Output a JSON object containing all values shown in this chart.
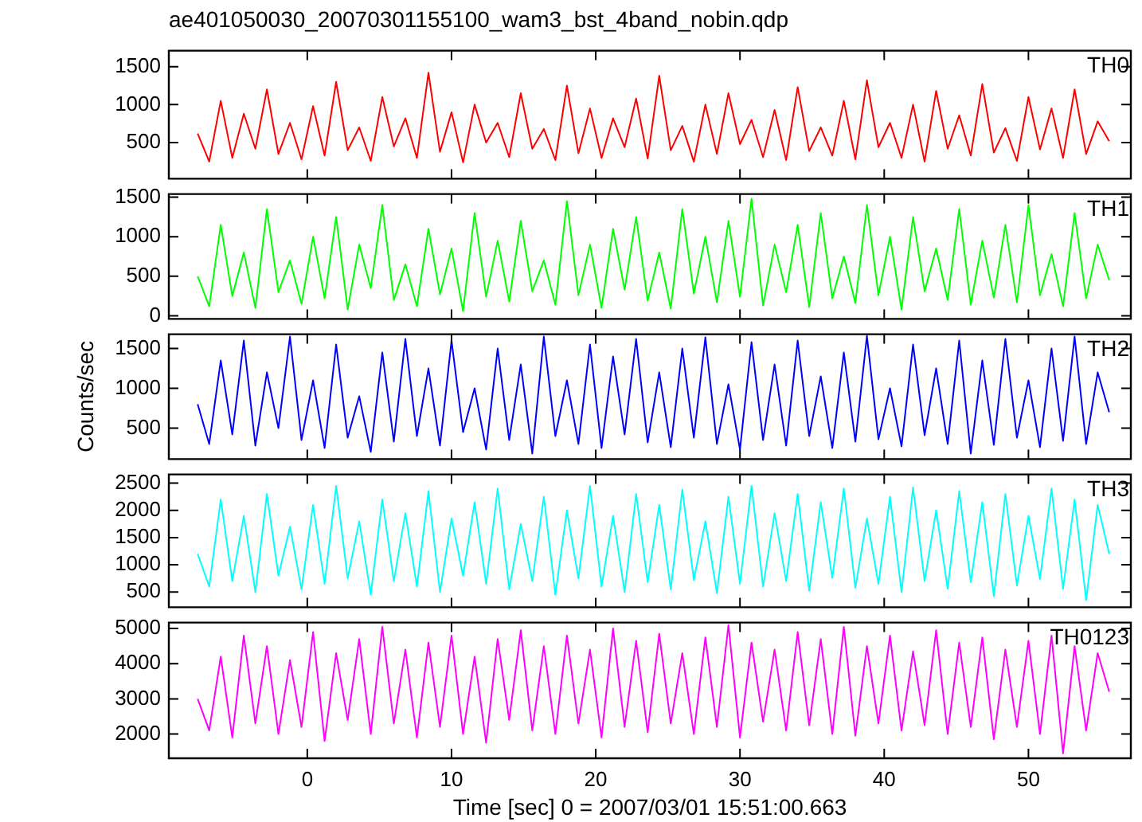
{
  "chart_data": [
    {
      "type": "line",
      "title": "ae401050030_20070301155100_wam3_bst_4band_nobin.qdp",
      "tick_labels": "y",
      "xlim": [
        -9.6,
        57.1
      ],
      "xticks": [
        0,
        10,
        20,
        30,
        40,
        50
      ],
      "ylim": [
        25,
        1710
      ],
      "yticks": [
        500,
        1000,
        1500
      ],
      "x": [
        -7.6,
        -6.8,
        -6,
        -5.2,
        -4.4,
        -3.6,
        -2.8,
        -2,
        -1.2,
        -0.4,
        0.4,
        1.2,
        2,
        2.8,
        3.6,
        4.4,
        5.2,
        6,
        6.8,
        7.6,
        8.4,
        9.2,
        10,
        10.8,
        11.6,
        12.4,
        13.2,
        14,
        14.8,
        15.6,
        16.4,
        17.2,
        18,
        18.8,
        19.6,
        20.4,
        21.2,
        22,
        22.8,
        23.6,
        24.4,
        25.2,
        26,
        26.8,
        27.6,
        28.4,
        29.2,
        30,
        30.8,
        31.6,
        32.4,
        33.2,
        34,
        34.8,
        35.6,
        36.4,
        37.2,
        38,
        38.8,
        39.6,
        40.4,
        41.2,
        42,
        42.8,
        43.6,
        44.4,
        45.2,
        46,
        46.8,
        47.6,
        48.4,
        49.2,
        50,
        50.8,
        51.6,
        52.4,
        53.2,
        54,
        54.8,
        55.6
      ],
      "series": [
        {
          "name": "TH0",
          "color": "#ff0000",
          "values": [
            620,
            250,
            1050,
            300,
            880,
            420,
            1200,
            350,
            760,
            280,
            980,
            330,
            1300,
            400,
            700,
            260,
            1100,
            450,
            820,
            300,
            1420,
            380,
            900,
            240,
            1000,
            500,
            760,
            310,
            1150,
            420,
            680,
            270,
            1250,
            360,
            950,
            300,
            820,
            440,
            1080,
            290,
            1380,
            400,
            720,
            250,
            1000,
            350,
            1150,
            480,
            800,
            310,
            930,
            270,
            1230,
            390,
            700,
            330,
            1050,
            280,
            1320,
            440,
            760,
            300,
            1000,
            250,
            1180,
            420,
            860,
            330,
            1270,
            370,
            690,
            260,
            1100,
            410,
            950,
            300,
            1200,
            350,
            780,
            520
          ]
        }
      ]
    },
    {
      "type": "line",
      "tick_labels": "y",
      "xlim": [
        -9.6,
        57.1
      ],
      "xticks": [
        0,
        10,
        20,
        30,
        40,
        50
      ],
      "ylim": [
        -40,
        1540
      ],
      "yticks": [
        0,
        500,
        1000,
        1500
      ],
      "x": [
        -7.6,
        -6.8,
        -6,
        -5.2,
        -4.4,
        -3.6,
        -2.8,
        -2,
        -1.2,
        -0.4,
        0.4,
        1.2,
        2,
        2.8,
        3.6,
        4.4,
        5.2,
        6,
        6.8,
        7.6,
        8.4,
        9.2,
        10,
        10.8,
        11.6,
        12.4,
        13.2,
        14,
        14.8,
        15.6,
        16.4,
        17.2,
        18,
        18.8,
        19.6,
        20.4,
        21.2,
        22,
        22.8,
        23.6,
        24.4,
        25.2,
        26,
        26.8,
        27.6,
        28.4,
        29.2,
        30,
        30.8,
        31.6,
        32.4,
        33.2,
        34,
        34.8,
        35.6,
        36.4,
        37.2,
        38,
        38.8,
        39.6,
        40.4,
        41.2,
        42,
        42.8,
        43.6,
        44.4,
        45.2,
        46,
        46.8,
        47.6,
        48.4,
        49.2,
        50,
        50.8,
        51.6,
        52.4,
        53.2,
        54,
        54.8,
        55.6
      ],
      "series": [
        {
          "name": "TH1",
          "color": "#00ff00",
          "values": [
            500,
            120,
            1150,
            250,
            800,
            100,
            1350,
            300,
            700,
            150,
            1000,
            220,
            1250,
            80,
            900,
            350,
            1400,
            200,
            650,
            120,
            1100,
            270,
            850,
            60,
            1300,
            240,
            950,
            180,
            1200,
            310,
            700,
            140,
            1450,
            260,
            900,
            100,
            1100,
            330,
            1250,
            190,
            800,
            90,
            1350,
            280,
            1000,
            170,
            1200,
            240,
            1480,
            130,
            900,
            300,
            1150,
            110,
            1300,
            220,
            750,
            160,
            1400,
            260,
            1000,
            80,
            1250,
            310,
            850,
            200,
            1350,
            140,
            950,
            230,
            1150,
            170,
            1400,
            260,
            780,
            120,
            1300,
            220,
            900,
            450
          ]
        }
      ]
    },
    {
      "type": "line",
      "ylabel": "Counts/sec",
      "tick_labels": "y",
      "xlim": [
        -9.6,
        57.1
      ],
      "xticks": [
        0,
        10,
        20,
        30,
        40,
        50
      ],
      "ylim": [
        110,
        1680
      ],
      "yticks": [
        500,
        1000,
        1500
      ],
      "x": [
        -7.6,
        -6.8,
        -6,
        -5.2,
        -4.4,
        -3.6,
        -2.8,
        -2,
        -1.2,
        -0.4,
        0.4,
        1.2,
        2,
        2.8,
        3.6,
        4.4,
        5.2,
        6,
        6.8,
        7.6,
        8.4,
        9.2,
        10,
        10.8,
        11.6,
        12.4,
        13.2,
        14,
        14.8,
        15.6,
        16.4,
        17.2,
        18,
        18.8,
        19.6,
        20.4,
        21.2,
        22,
        22.8,
        23.6,
        24.4,
        25.2,
        26,
        26.8,
        27.6,
        28.4,
        29.2,
        30,
        30.8,
        31.6,
        32.4,
        33.2,
        34,
        34.8,
        35.6,
        36.4,
        37.2,
        38,
        38.8,
        39.6,
        40.4,
        41.2,
        42,
        42.8,
        43.6,
        44.4,
        45.2,
        46,
        46.8,
        47.6,
        48.4,
        49.2,
        50,
        50.8,
        51.6,
        52.4,
        53.2,
        54,
        54.8,
        55.6
      ],
      "series": [
        {
          "name": "TH2",
          "color": "#0000ff",
          "values": [
            800,
            300,
            1350,
            420,
            1600,
            280,
            1200,
            500,
            1650,
            350,
            1100,
            250,
            1550,
            380,
            900,
            200,
            1450,
            330,
            1620,
            400,
            1250,
            280,
            1600,
            450,
            1000,
            230,
            1500,
            350,
            1300,
            180,
            1650,
            400,
            1100,
            300,
            1550,
            250,
            1400,
            420,
            1620,
            320,
            1200,
            260,
            1500,
            380,
            1640,
            300,
            1050,
            230,
            1580,
            350,
            1300,
            280,
            1600,
            400,
            1150,
            250,
            1450,
            330,
            1660,
            360,
            1000,
            270,
            1550,
            410,
            1250,
            300,
            1600,
            180,
            1350,
            290,
            1620,
            380,
            1100,
            260,
            1500,
            340,
            1650,
            300,
            1200,
            700
          ]
        }
      ]
    },
    {
      "type": "line",
      "tick_labels": "y",
      "xlim": [
        -9.6,
        57.1
      ],
      "xticks": [
        0,
        10,
        20,
        30,
        40,
        50
      ],
      "ylim": [
        220,
        2660
      ],
      "yticks": [
        500,
        1000,
        1500,
        2000,
        2500
      ],
      "x": [
        -7.6,
        -6.8,
        -6,
        -5.2,
        -4.4,
        -3.6,
        -2.8,
        -2,
        -1.2,
        -0.4,
        0.4,
        1.2,
        2,
        2.8,
        3.6,
        4.4,
        5.2,
        6,
        6.8,
        7.6,
        8.4,
        9.2,
        10,
        10.8,
        11.6,
        12.4,
        13.2,
        14,
        14.8,
        15.6,
        16.4,
        17.2,
        18,
        18.8,
        19.6,
        20.4,
        21.2,
        22,
        22.8,
        23.6,
        24.4,
        25.2,
        26,
        26.8,
        27.6,
        28.4,
        29.2,
        30,
        30.8,
        31.6,
        32.4,
        33.2,
        34,
        34.8,
        35.6,
        36.4,
        37.2,
        38,
        38.8,
        39.6,
        40.4,
        41.2,
        42,
        42.8,
        43.6,
        44.4,
        45.2,
        46,
        46.8,
        47.6,
        48.4,
        49.2,
        50,
        50.8,
        51.6,
        52.4,
        53.2,
        54,
        54.8,
        55.6
      ],
      "series": [
        {
          "name": "TH3",
          "color": "#00ffff",
          "values": [
            1200,
            600,
            2200,
            700,
            1900,
            500,
            2300,
            800,
            1700,
            550,
            2100,
            650,
            2450,
            750,
            1800,
            450,
            2200,
            700,
            1950,
            600,
            2350,
            500,
            1850,
            800,
            2150,
            650,
            2400,
            550,
            1750,
            700,
            2250,
            450,
            2000,
            750,
            2450,
            600,
            1900,
            500,
            2300,
            680,
            2100,
            550,
            2380,
            720,
            1800,
            480,
            2250,
            650,
            2450,
            600,
            1950,
            700,
            2300,
            520,
            2150,
            760,
            2400,
            580,
            1850,
            650,
            2250,
            500,
            2420,
            700,
            2000,
            560,
            2350,
            680,
            2150,
            420,
            2300,
            620,
            1900,
            740,
            2400,
            560,
            2200,
            350,
            2100,
            1200
          ]
        }
      ]
    },
    {
      "type": "line",
      "xlabel": "Time [sec] 0 = 2007/03/01 15:51:00.663",
      "xlim": [
        -9.6,
        57.1
      ],
      "xticks": [
        0,
        10,
        20,
        30,
        40,
        50
      ],
      "ylim": [
        1310,
        5170
      ],
      "yticks": [
        2000,
        3000,
        4000,
        5000
      ],
      "x": [
        -7.6,
        -6.8,
        -6,
        -5.2,
        -4.4,
        -3.6,
        -2.8,
        -2,
        -1.2,
        -0.4,
        0.4,
        1.2,
        2,
        2.8,
        3.6,
        4.4,
        5.2,
        6,
        6.8,
        7.6,
        8.4,
        9.2,
        10,
        10.8,
        11.6,
        12.4,
        13.2,
        14,
        14.8,
        15.6,
        16.4,
        17.2,
        18,
        18.8,
        19.6,
        20.4,
        21.2,
        22,
        22.8,
        23.6,
        24.4,
        25.2,
        26,
        26.8,
        27.6,
        28.4,
        29.2,
        30,
        30.8,
        31.6,
        32.4,
        33.2,
        34,
        34.8,
        35.6,
        36.4,
        37.2,
        38,
        38.8,
        39.6,
        40.4,
        41.2,
        42,
        42.8,
        43.6,
        44.4,
        45.2,
        46,
        46.8,
        47.6,
        48.4,
        49.2,
        50,
        50.8,
        51.6,
        52.4,
        53.2,
        54,
        54.8,
        55.6
      ],
      "series": [
        {
          "name": "TH0123",
          "color": "#ff00ff",
          "values": [
            3000,
            2100,
            4200,
            1900,
            4800,
            2300,
            4500,
            2000,
            4100,
            2200,
            4900,
            1800,
            4300,
            2400,
            4700,
            2000,
            5050,
            2300,
            4400,
            1900,
            4600,
            2200,
            4800,
            2000,
            4200,
            1750,
            4700,
            2400,
            4950,
            2100,
            4500,
            2000,
            4800,
            2300,
            4400,
            1900,
            5000,
            2200,
            4650,
            2050,
            4850,
            2300,
            4300,
            2000,
            4750,
            2200,
            5100,
            1900,
            4600,
            2350,
            4400,
            2100,
            4900,
            2250,
            4700,
            2000,
            5050,
            1950,
            4500,
            2300,
            4800,
            2100,
            4350,
            2250,
            4950,
            2000,
            4600,
            2200,
            4750,
            1850,
            4400,
            2200,
            4650,
            2000,
            4800,
            1450,
            4500,
            2100,
            4300,
            3200
          ]
        }
      ]
    }
  ]
}
